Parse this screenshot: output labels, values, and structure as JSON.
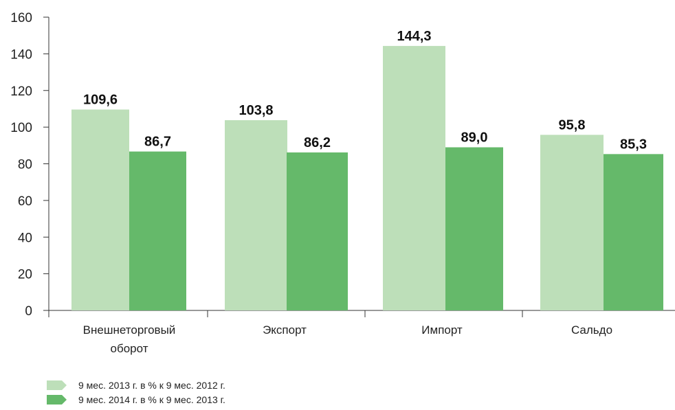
{
  "chart_data": {
    "type": "bar",
    "title": "",
    "xlabel": "",
    "ylabel": "",
    "ylim": [
      0,
      160
    ],
    "yticks": [
      0,
      20,
      40,
      60,
      80,
      100,
      120,
      140,
      160
    ],
    "categories": [
      [
        "Внешнеторговый",
        "оборот"
      ],
      [
        "Экспорт"
      ],
      [
        "Импорт"
      ],
      [
        "Сальдо"
      ]
    ],
    "series": [
      {
        "name": "9 мес. 2013 г. в % к 9 мес. 2012 г.",
        "color": "#bddfb9",
        "values": [
          109.6,
          103.8,
          144.3,
          95.8
        ],
        "labels": [
          "109,6",
          "103,8",
          "144,3",
          "95,8"
        ]
      },
      {
        "name": "9 мес. 2014 г. в % к 9 мес. 2013 г.",
        "color": "#65b96a",
        "values": [
          86.7,
          86.2,
          89.0,
          85.3
        ],
        "labels": [
          "86,7",
          "86,2",
          "89,0",
          "85,3"
        ]
      }
    ],
    "grid": false,
    "legend_position": "bottom-left"
  }
}
